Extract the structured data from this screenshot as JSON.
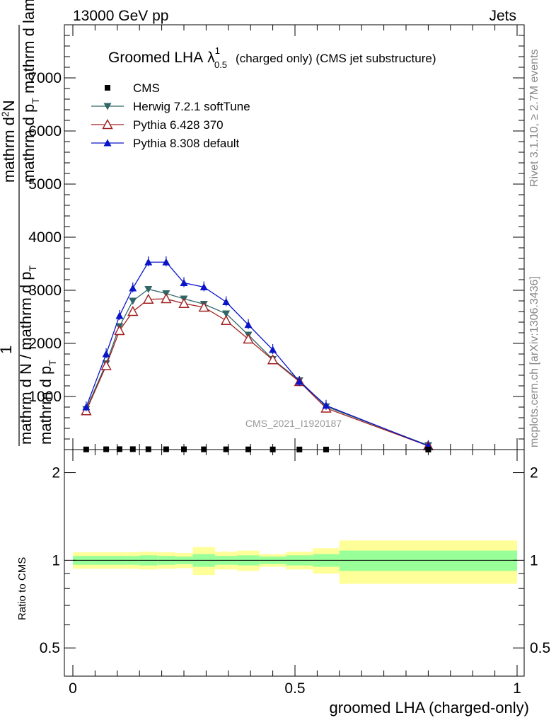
{
  "header": {
    "left": "13000 GeV pp",
    "right": "Jets"
  },
  "side_labels": {
    "rivet": "Rivet 3.1.10, ≥ 2.7M events",
    "mcplots": "mcplots.cern.ch [arXiv:1306.3436]"
  },
  "watermark": "CMS_2021_I1920187",
  "title": {
    "main": "Groomed LHA",
    "symbol": "λ",
    "sup": "1",
    "sub": "0.5",
    "rest": "(charged only) (CMS jet substructure)"
  },
  "ylabel": {
    "num_line1": "mathrm d",
    "num_sup": "2",
    "num_after": "N",
    "num_line2_pre": "mathrm d p",
    "num_line2_sub": "T",
    "num_line2_post": " mathrm d lambda",
    "one": "1",
    "den_line1": "mathrm d N / mathrm d p",
    "den_sub": "T",
    "den_line2_pre": "mathrm d p",
    "den_line2_sub": "T"
  },
  "xlabel": "groomed LHA (charged-only)",
  "ratio_ylabel": "Ratio to CMS",
  "main_yticks": [
    "1000",
    "2000",
    "3000",
    "4000",
    "5000",
    "6000",
    "7000"
  ],
  "ratio_yticks": [
    "0.5",
    "1",
    "2"
  ],
  "xticks": [
    "0",
    "0.5",
    "1"
  ],
  "legend": [
    {
      "label": "CMS",
      "color": "#000000",
      "marker": "square"
    },
    {
      "label": "Herwig 7.2.1 softTune",
      "color": "#306666",
      "marker": "triangle-down"
    },
    {
      "label": "Pythia 6.428 370",
      "color": "#a02020",
      "marker": "triangle-open"
    },
    {
      "label": "Pythia 8.308 default",
      "color": "#0a14c8",
      "marker": "triangle-up"
    }
  ],
  "chart_data": {
    "type": "line",
    "x": [
      0.03,
      0.075,
      0.105,
      0.135,
      0.17,
      0.21,
      0.25,
      0.295,
      0.345,
      0.395,
      0.45,
      0.51,
      0.57,
      0.8
    ],
    "xlim": [
      -0.02,
      1.0
    ],
    "ylim": [
      0,
      8000
    ],
    "ratio_ylim_log": [
      0.4,
      2.4
    ],
    "series": [
      {
        "name": "CMS",
        "values": [
          3,
          6,
          8,
          8,
          7,
          6,
          6,
          5,
          5,
          4,
          3,
          2,
          1,
          0.4
        ]
      },
      {
        "name": "Herwig 7.2.1 softTune",
        "values": [
          760,
          1620,
          2320,
          2800,
          3020,
          2940,
          2840,
          2740,
          2560,
          2160,
          1700,
          1300,
          810,
          80
        ]
      },
      {
        "name": "Pythia 6.428 370",
        "values": [
          730,
          1580,
          2240,
          2600,
          2830,
          2840,
          2750,
          2680,
          2430,
          2080,
          1690,
          1280,
          780,
          70
        ]
      },
      {
        "name": "Pythia 8.308 default",
        "values": [
          800,
          1800,
          2520,
          3040,
          3530,
          3530,
          3140,
          3060,
          2780,
          2350,
          1880,
          1280,
          830,
          70
        ]
      }
    ],
    "ratio": {
      "bin_edges": [
        0.0,
        0.05,
        0.09,
        0.12,
        0.15,
        0.19,
        0.23,
        0.27,
        0.32,
        0.37,
        0.42,
        0.48,
        0.54,
        0.6,
        1.0
      ],
      "inner_band_half": [
        0.035,
        0.035,
        0.035,
        0.035,
        0.04,
        0.035,
        0.03,
        0.05,
        0.035,
        0.04,
        0.03,
        0.04,
        0.05,
        0.08
      ],
      "outer_band_half": [
        0.065,
        0.065,
        0.065,
        0.065,
        0.07,
        0.065,
        0.06,
        0.11,
        0.07,
        0.08,
        0.05,
        0.07,
        0.1,
        0.17
      ]
    }
  }
}
